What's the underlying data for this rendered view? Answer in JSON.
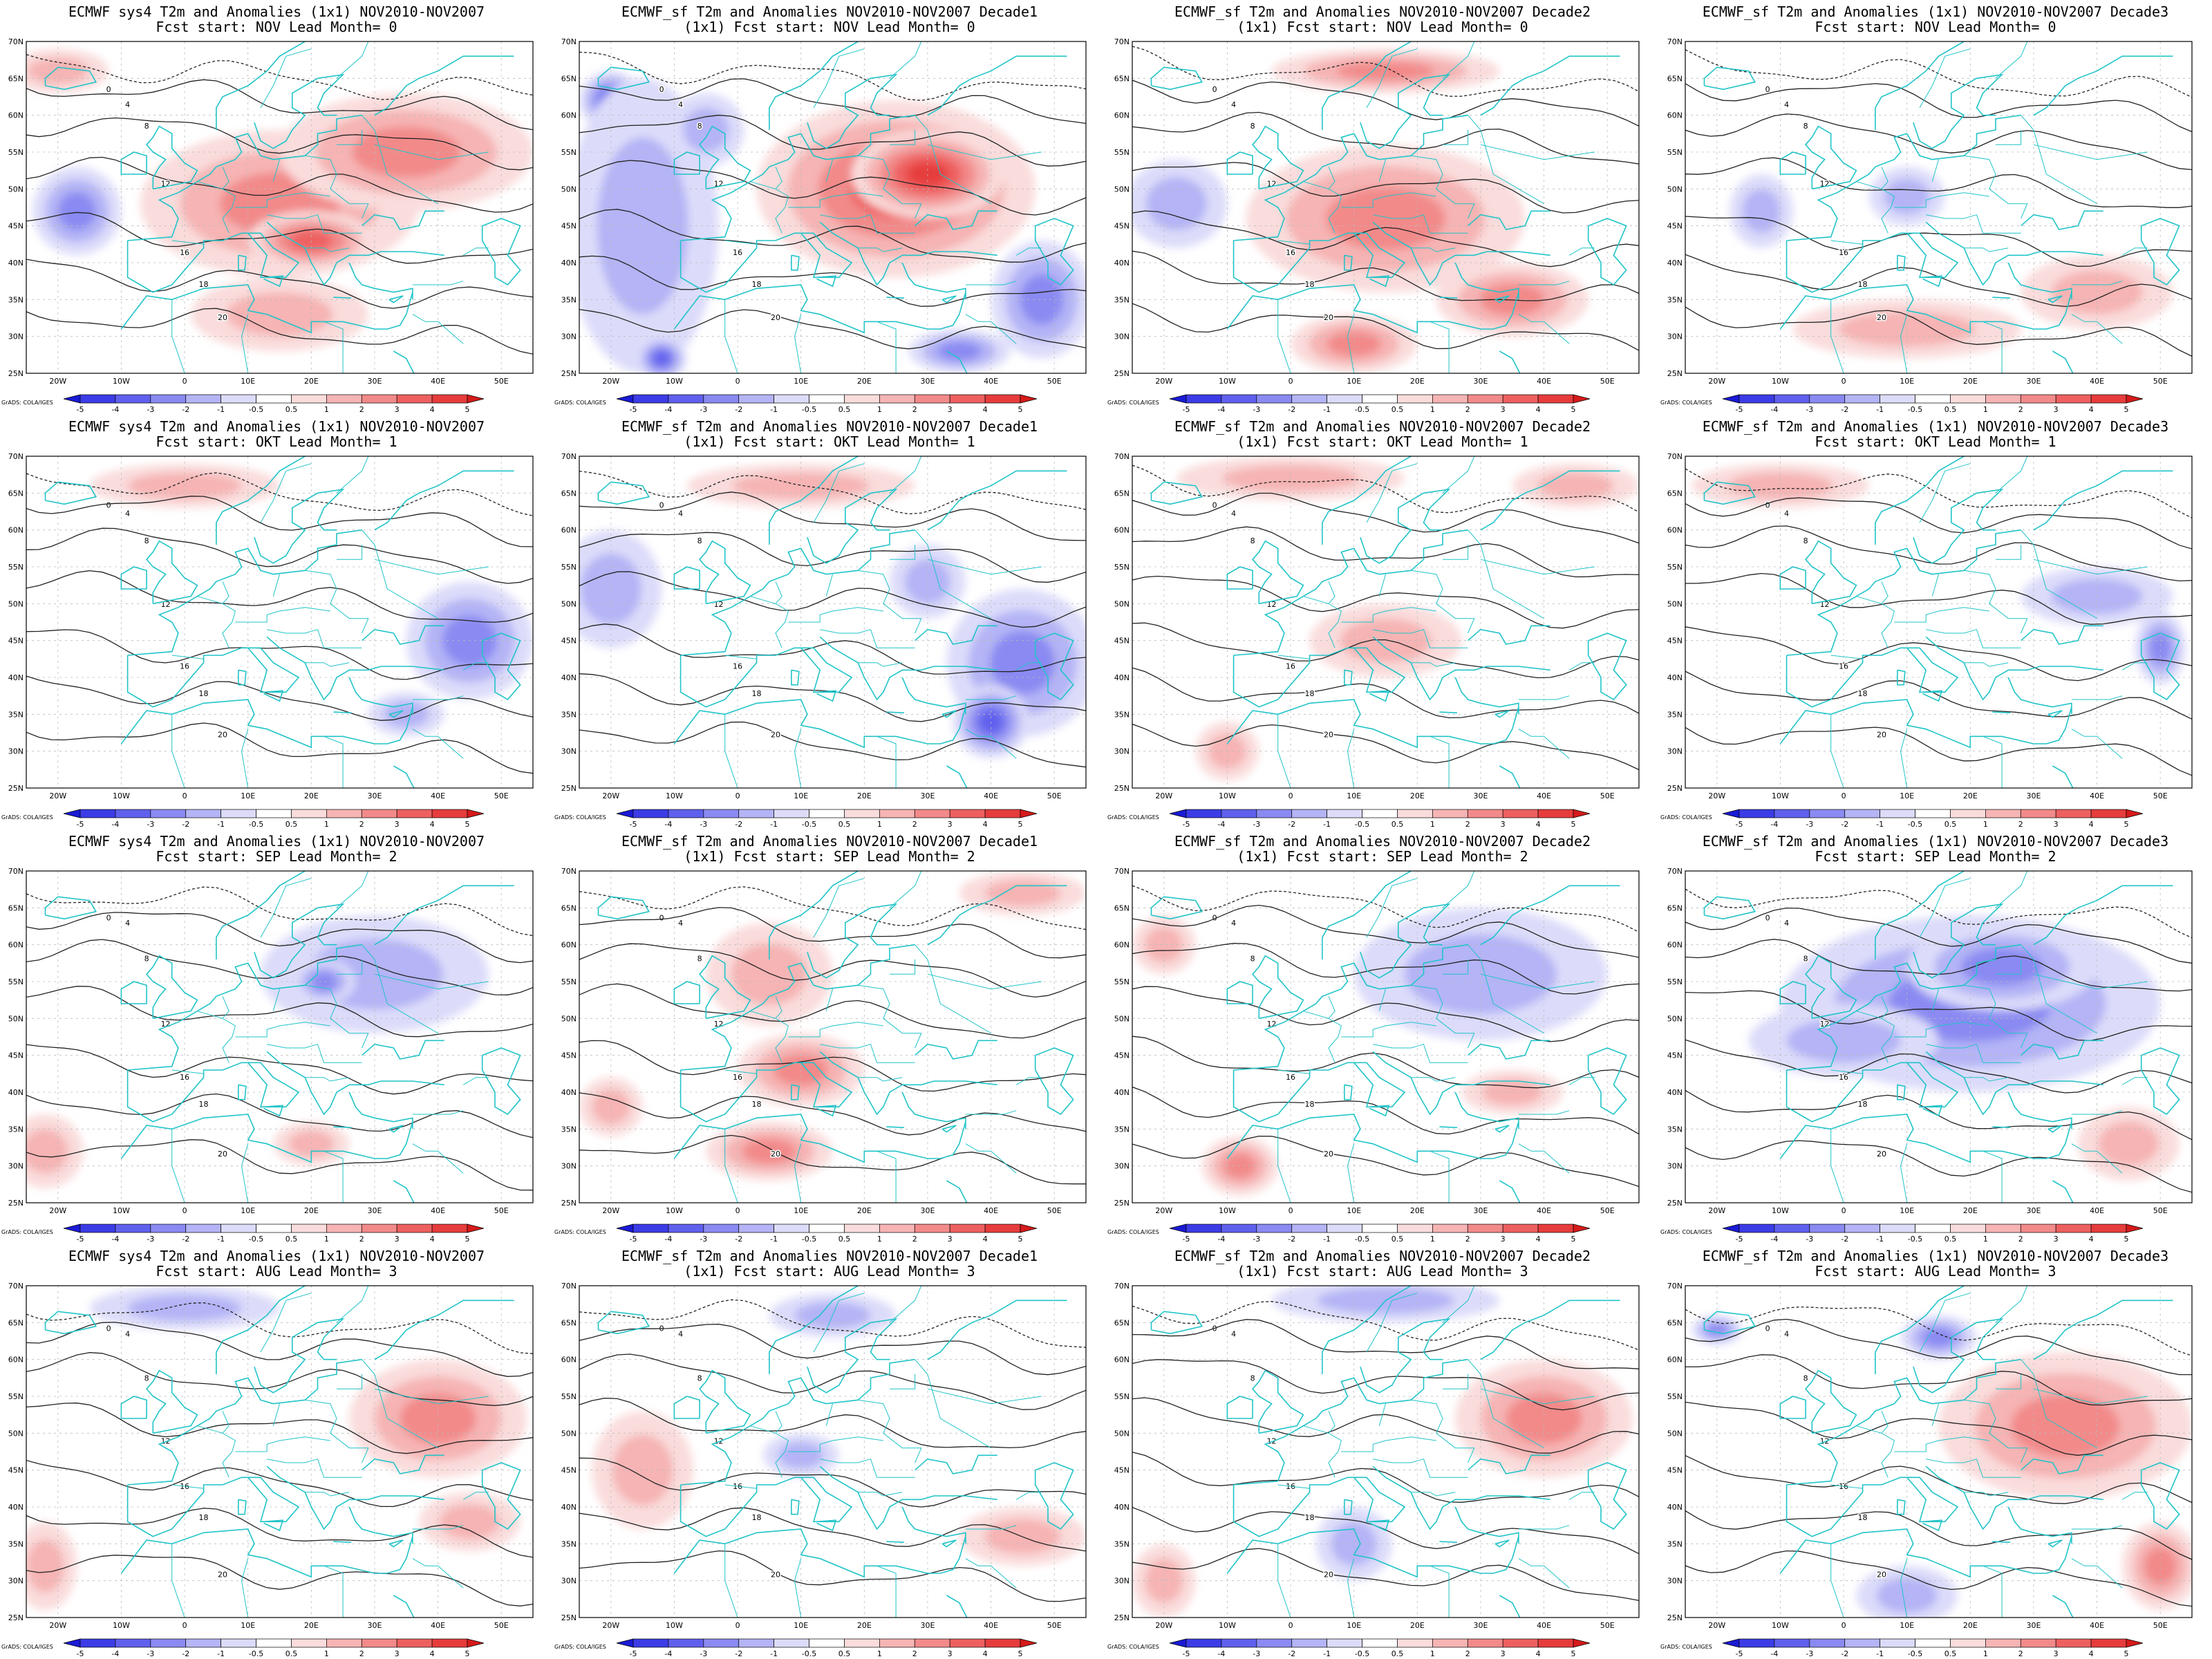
{
  "figure": {
    "credit": "GrADS: COLA/IGES",
    "colorbar": {
      "labels": [
        "-5",
        "-4",
        "-3",
        "-2",
        "-1",
        "-0.5",
        "0.5",
        "1",
        "2",
        "3",
        "4",
        "5"
      ],
      "colors": [
        "#1a1ad6",
        "#3c3ce6",
        "#6060ee",
        "#8a8af2",
        "#b4b4f6",
        "#dcdcfa",
        "#ffffff",
        "#fadcdc",
        "#f6b4b4",
        "#f28a8a",
        "#ee6060",
        "#e63c3c",
        "#d61a1a"
      ]
    },
    "lat_labels": [
      "70N",
      "65N",
      "60N",
      "55N",
      "50N",
      "45N",
      "40N",
      "35N",
      "30N",
      "25N"
    ],
    "lon_labels": [
      "20W",
      "10W",
      "0",
      "10E",
      "20E",
      "30E",
      "40E",
      "50E"
    ],
    "colors": {
      "coast": "#21c4c8",
      "contour": "#222222",
      "warm": "#e02a2a",
      "cold": "#3a3ae0"
    }
  },
  "rows": [
    {
      "lead": "NOV",
      "panels": [
        {
          "t1": "ECMWF sys4 T2m and Anomalies (1x1) NOV2010-NOV2007",
          "t2": "Fcst start: NOV  Lead Month= 0",
          "intensity": 0.85
        },
        {
          "t1": "ECMWF_sf T2m and Anomalies NOV2010-NOV2007 Decade1",
          "t2": "(1x1) Fcst start: NOV  Lead Month= 0",
          "intensity": 1.0
        },
        {
          "t1": "ECMWF_sf T2m and Anomalies NOV2010-NOV2007 Decade2",
          "t2": "(1x1) Fcst start: NOV  Lead Month= 0",
          "intensity": 0.85
        },
        {
          "t1": "ECMWF_sf T2m and Anomalies (1x1) NOV2010-NOV2007 Decade3",
          "t2": "Fcst start: NOV  Lead Month= 0",
          "intensity": 0.45
        }
      ]
    },
    {
      "lead": "OKT",
      "panels": [
        {
          "t1": "ECMWF sys4 T2m and Anomalies (1x1) NOV2010-NOV2007",
          "t2": "Fcst start: OKT  Lead Month= 1",
          "intensity": 0.4
        },
        {
          "t1": "ECMWF_sf T2m and Anomalies NOV2010-NOV2007 Decade1",
          "t2": "(1x1) Fcst start: OKT  Lead Month= 1",
          "intensity": 0.6
        },
        {
          "t1": "ECMWF_sf T2m and Anomalies NOV2010-NOV2007 Decade2",
          "t2": "(1x1) Fcst start: OKT  Lead Month= 1",
          "intensity": 0.4
        },
        {
          "t1": "ECMWF_sf T2m and Anomalies (1x1) NOV2010-NOV2007 Decade3",
          "t2": "Fcst start: OKT  Lead Month= 1",
          "intensity": 0.4
        }
      ]
    },
    {
      "lead": "SEP",
      "panels": [
        {
          "t1": "ECMWF sys4 T2m and Anomalies (1x1) NOV2010-NOV2007",
          "t2": "Fcst start: SEP  Lead Month= 2",
          "intensity": 0.35
        },
        {
          "t1": "ECMWF_sf T2m and Anomalies NOV2010-NOV2007 Decade1",
          "t2": "(1x1) Fcst start: SEP  Lead Month= 2",
          "intensity": 0.4
        },
        {
          "t1": "ECMWF_sf T2m and Anomalies NOV2010-NOV2007 Decade2",
          "t2": "(1x1) Fcst start: SEP  Lead Month= 2",
          "intensity": 0.35
        },
        {
          "t1": "ECMWF_sf T2m and Anomalies (1x1) NOV2010-NOV2007 Decade3",
          "t2": "Fcst start: SEP  Lead Month= 2",
          "intensity": 0.55
        }
      ]
    },
    {
      "lead": "AUG",
      "panels": [
        {
          "t1": "ECMWF sys4 T2m and Anomalies (1x1) NOV2010-NOV2007",
          "t2": "Fcst start: AUG  Lead Month= 3",
          "intensity": 0.4
        },
        {
          "t1": "ECMWF_sf T2m and Anomalies NOV2010-NOV2007 Decade1",
          "t2": "(1x1) Fcst start: AUG  Lead Month= 3",
          "intensity": 0.3
        },
        {
          "t1": "ECMWF_sf T2m and Anomalies NOV2010-NOV2007 Decade2",
          "t2": "(1x1) Fcst start: AUG  Lead Month= 3",
          "intensity": 0.4
        },
        {
          "t1": "ECMWF_sf T2m and Anomalies (1x1) NOV2010-NOV2007 Decade3",
          "t2": "Fcst start: AUG  Lead Month= 3",
          "intensity": 0.45
        }
      ]
    }
  ]
}
